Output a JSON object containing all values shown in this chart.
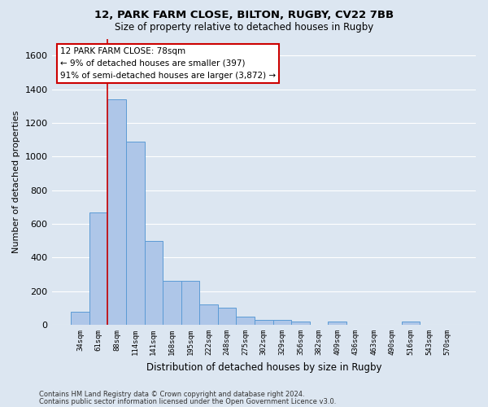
{
  "title_line1": "12, PARK FARM CLOSE, BILTON, RUGBY, CV22 7BB",
  "title_line2": "Size of property relative to detached houses in Rugby",
  "xlabel": "Distribution of detached houses by size in Rugby",
  "ylabel": "Number of detached properties",
  "annotation_title": "12 PARK FARM CLOSE: 78sqm",
  "annotation_line2": "← 9% of detached houses are smaller (397)",
  "annotation_line3": "91% of semi-detached houses are larger (3,872) →",
  "footer_line1": "Contains HM Land Registry data © Crown copyright and database right 2024.",
  "footer_line2": "Contains public sector information licensed under the Open Government Licence v3.0.",
  "bar_color": "#aec6e8",
  "bar_edge_color": "#5b9bd5",
  "background_color": "#dce6f1",
  "grid_color": "#ffffff",
  "annotation_box_color": "#ffffff",
  "annotation_box_edge": "#cc0000",
  "vline_color": "#cc0000",
  "categories": [
    "34sqm",
    "61sqm",
    "88sqm",
    "114sqm",
    "141sqm",
    "168sqm",
    "195sqm",
    "222sqm",
    "248sqm",
    "275sqm",
    "302sqm",
    "329sqm",
    "356sqm",
    "382sqm",
    "409sqm",
    "436sqm",
    "463sqm",
    "490sqm",
    "516sqm",
    "543sqm",
    "570sqm"
  ],
  "values": [
    80,
    670,
    1340,
    1090,
    500,
    260,
    260,
    120,
    100,
    50,
    30,
    30,
    20,
    0,
    20,
    0,
    0,
    0,
    20,
    0,
    0
  ],
  "ylim": [
    0,
    1700
  ],
  "yticks": [
    0,
    200,
    400,
    600,
    800,
    1000,
    1200,
    1400,
    1600
  ],
  "figsize": [
    6.0,
    5.0
  ],
  "dpi": 100
}
